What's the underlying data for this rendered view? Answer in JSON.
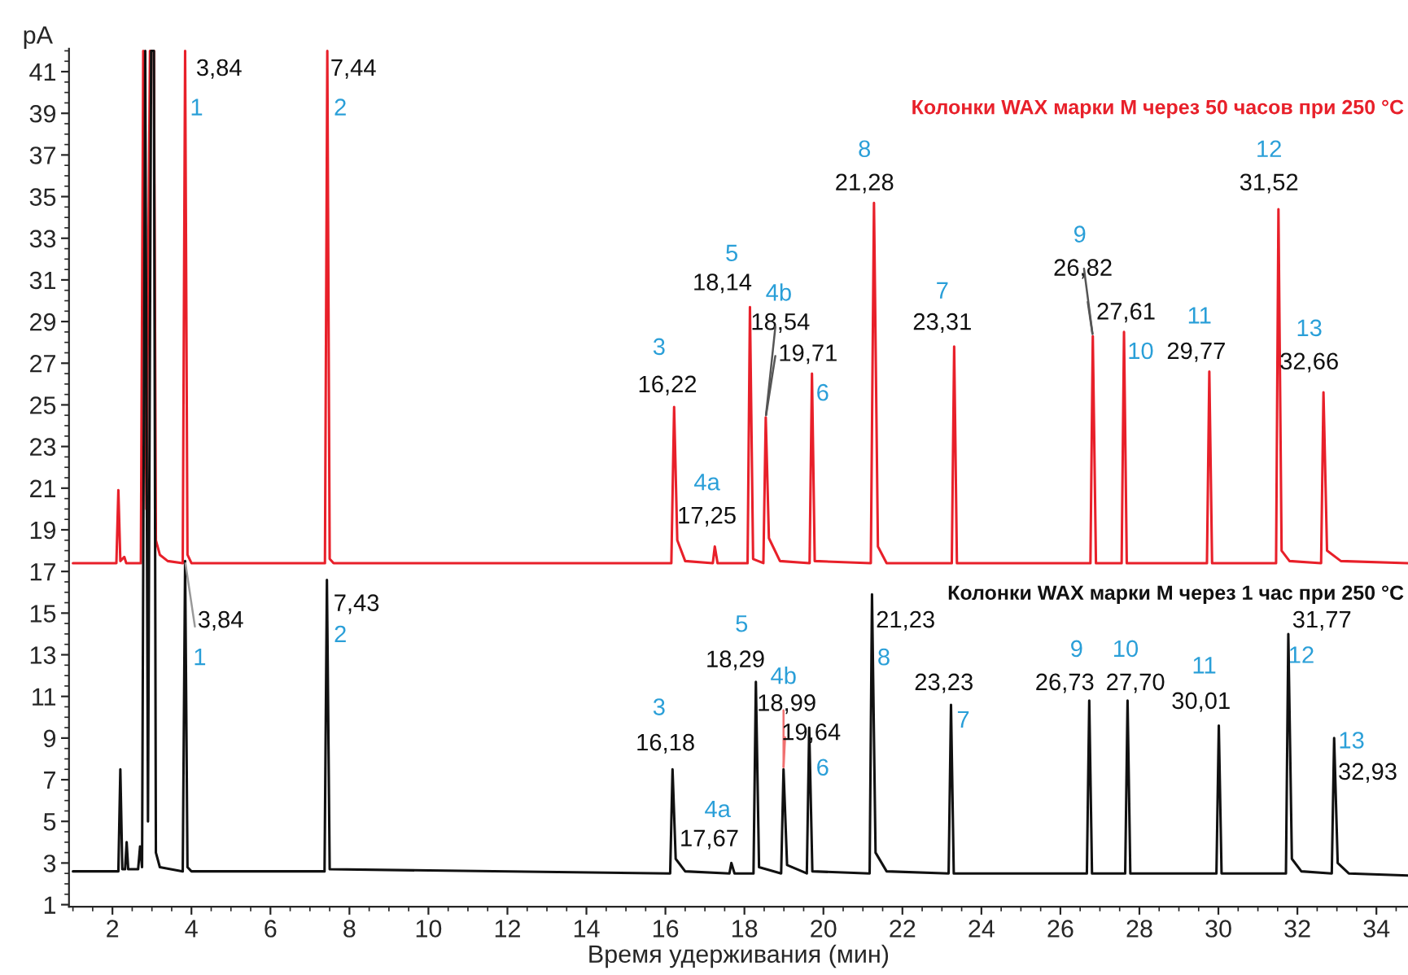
{
  "chart_data": {
    "type": "line",
    "xlabel": "Время удерживания (мин)",
    "ylabel": "pA",
    "xlim": [
      0.9,
      34.8
    ],
    "ylim": [
      0.9,
      42.1
    ],
    "xticks": [
      2,
      4,
      6,
      8,
      10,
      12,
      14,
      16,
      18,
      20,
      22,
      24,
      26,
      28,
      30,
      32,
      34
    ],
    "yticks": [
      1,
      3,
      5,
      7,
      9,
      11,
      13,
      15,
      17,
      19,
      21,
      23,
      25,
      27,
      29,
      31,
      33,
      35,
      37,
      39,
      41
    ],
    "grid": false,
    "marker": "none",
    "line_style": "solid",
    "series": [
      {
        "name": "Колонки WAX марки M через 50 часов при 250 °C",
        "color": "#e8202a",
        "x": [
          1.0,
          2.1,
          2.15,
          2.2,
          2.3,
          2.35,
          2.72,
          2.78,
          2.86,
          2.95,
          3.05,
          3.1,
          3.2,
          3.4,
          3.78,
          3.84,
          3.9,
          4.0,
          7.38,
          7.44,
          7.5,
          7.6,
          16.15,
          16.22,
          16.3,
          16.5,
          17.2,
          17.25,
          17.32,
          18.08,
          18.14,
          18.22,
          18.48,
          18.54,
          18.62,
          18.9,
          19.65,
          19.71,
          19.78,
          21.2,
          21.28,
          21.38,
          21.6,
          23.25,
          23.31,
          23.38,
          26.76,
          26.82,
          26.9,
          27.55,
          27.61,
          27.68,
          29.71,
          29.77,
          29.84,
          31.46,
          31.52,
          31.6,
          31.8,
          32.6,
          32.66,
          32.75,
          33.1,
          34.8
        ],
        "values": [
          17.4,
          17.4,
          20.9,
          17.5,
          17.7,
          17.4,
          17.4,
          42,
          20,
          42,
          42,
          18.5,
          17.8,
          17.5,
          17.4,
          42,
          17.8,
          17.4,
          17.4,
          42,
          17.6,
          17.4,
          17.4,
          24.9,
          18.5,
          17.5,
          17.4,
          18.2,
          17.4,
          17.4,
          29.7,
          17.6,
          17.4,
          24.4,
          18.6,
          17.5,
          17.4,
          26.5,
          17.5,
          17.4,
          34.7,
          18.2,
          17.4,
          17.4,
          27.8,
          17.4,
          17.4,
          28.3,
          17.4,
          17.4,
          28.5,
          17.4,
          17.4,
          26.6,
          17.4,
          17.4,
          34.4,
          18.0,
          17.5,
          17.4,
          25.6,
          18.0,
          17.5,
          17.4
        ]
      },
      {
        "name": "Колонки WAX марки M через 1 час при 250 °C",
        "color": "#111111",
        "x": [
          1.0,
          2.15,
          2.2,
          2.25,
          2.32,
          2.36,
          2.4,
          2.65,
          2.7,
          2.75,
          2.83,
          2.9,
          2.98,
          3.05,
          3.1,
          3.2,
          3.78,
          3.84,
          3.9,
          4.0,
          7.37,
          7.43,
          7.5,
          16.12,
          16.18,
          16.26,
          16.5,
          17.62,
          17.67,
          17.75,
          18.23,
          18.29,
          18.37,
          18.93,
          18.99,
          19.08,
          19.58,
          19.64,
          19.72,
          21.17,
          21.23,
          21.32,
          21.6,
          23.17,
          23.23,
          23.3,
          26.67,
          26.73,
          26.8,
          27.64,
          27.7,
          27.77,
          29.95,
          30.01,
          30.08,
          31.71,
          31.77,
          31.86,
          32.1,
          32.87,
          32.93,
          33.02,
          33.3,
          34.8
        ],
        "values": [
          2.6,
          2.6,
          7.5,
          2.7,
          2.7,
          4.0,
          2.7,
          2.7,
          3.8,
          2.8,
          42,
          5,
          42,
          42,
          3.5,
          2.8,
          2.6,
          17.5,
          2.8,
          2.6,
          2.6,
          16.6,
          2.7,
          2.5,
          7.5,
          3.2,
          2.6,
          2.5,
          3.0,
          2.5,
          2.5,
          11.7,
          2.8,
          2.5,
          7.5,
          2.9,
          2.5,
          9.5,
          2.6,
          2.5,
          15.9,
          3.5,
          2.6,
          2.5,
          10.6,
          2.5,
          2.5,
          10.8,
          2.5,
          2.5,
          10.8,
          2.5,
          2.5,
          9.6,
          2.5,
          2.5,
          14.0,
          3.2,
          2.6,
          2.5,
          9.0,
          3.0,
          2.5,
          2.4
        ]
      }
    ],
    "annotations": [
      {
        "text": "3,84",
        "x": 3.84,
        "y": 42
      },
      {
        "text": "1",
        "x": 3.84,
        "y": 42
      },
      {
        "text": "7,44",
        "x": 7.44,
        "y": 42
      },
      {
        "text": "2",
        "x": 7.44,
        "y": 42
      },
      {
        "text": "16,22",
        "x": 16.22,
        "y": 24.9
      },
      {
        "text": "3",
        "x": 16.22,
        "y": 24.9
      },
      {
        "text": "17,25",
        "x": 17.25,
        "y": 18.2
      },
      {
        "text": "4a",
        "x": 17.25,
        "y": 18.2
      },
      {
        "text": "18,14",
        "x": 18.14,
        "y": 29.7
      },
      {
        "text": "5",
        "x": 18.14,
        "y": 29.7
      },
      {
        "text": "18,54",
        "x": 18.54,
        "y": 24.4
      },
      {
        "text": "4b",
        "x": 18.54,
        "y": 24.4
      },
      {
        "text": "19,71",
        "x": 19.71,
        "y": 26.5
      },
      {
        "text": "6",
        "x": 19.71,
        "y": 26.5
      },
      {
        "text": "21,28",
        "x": 21.28,
        "y": 34.7
      },
      {
        "text": "8",
        "x": 21.28,
        "y": 34.7
      },
      {
        "text": "23,31",
        "x": 23.31,
        "y": 27.8
      },
      {
        "text": "7",
        "x": 23.31,
        "y": 27.8
      },
      {
        "text": "26,82",
        "x": 26.82,
        "y": 28.3
      },
      {
        "text": "9",
        "x": 26.82,
        "y": 28.3
      },
      {
        "text": "27,61",
        "x": 27.61,
        "y": 28.5
      },
      {
        "text": "10",
        "x": 27.61,
        "y": 28.5
      },
      {
        "text": "29,77",
        "x": 29.77,
        "y": 26.6
      },
      {
        "text": "11",
        "x": 29.77,
        "y": 26.6
      },
      {
        "text": "31,52",
        "x": 31.52,
        "y": 34.4
      },
      {
        "text": "12",
        "x": 31.52,
        "y": 34.4
      },
      {
        "text": "32,66",
        "x": 32.66,
        "y": 25.6
      },
      {
        "text": "13",
        "x": 32.66,
        "y": 25.6
      },
      {
        "text": "3,84",
        "x": 3.84,
        "y": 17.5
      },
      {
        "text": "1",
        "x": 3.84,
        "y": 17.5
      },
      {
        "text": "7,43",
        "x": 7.43,
        "y": 16.6
      },
      {
        "text": "2",
        "x": 7.43,
        "y": 16.6
      },
      {
        "text": "16,18",
        "x": 16.18,
        "y": 7.5
      },
      {
        "text": "3",
        "x": 16.18,
        "y": 7.5
      },
      {
        "text": "17,67",
        "x": 17.67,
        "y": 3.0
      },
      {
        "text": "4a",
        "x": 17.67,
        "y": 3.0
      },
      {
        "text": "18,29",
        "x": 18.29,
        "y": 11.7
      },
      {
        "text": "5",
        "x": 18.29,
        "y": 11.7
      },
      {
        "text": "18,99",
        "x": 18.99,
        "y": 7.5
      },
      {
        "text": "4b",
        "x": 18.99,
        "y": 7.5
      },
      {
        "text": "19,64",
        "x": 19.64,
        "y": 9.5
      },
      {
        "text": "6",
        "x": 19.64,
        "y": 9.5
      },
      {
        "text": "21,23",
        "x": 21.23,
        "y": 15.9
      },
      {
        "text": "8",
        "x": 21.23,
        "y": 15.9
      },
      {
        "text": "23,23",
        "x": 23.23,
        "y": 10.6
      },
      {
        "text": "7",
        "x": 23.23,
        "y": 10.6
      },
      {
        "text": "26,73",
        "x": 26.73,
        "y": 10.8
      },
      {
        "text": "9",
        "x": 26.73,
        "y": 10.8
      },
      {
        "text": "27,70",
        "x": 27.7,
        "y": 10.8
      },
      {
        "text": "10",
        "x": 27.7,
        "y": 10.8
      },
      {
        "text": "30,01",
        "x": 30.01,
        "y": 9.6
      },
      {
        "text": "11",
        "x": 30.01,
        "y": 9.6
      },
      {
        "text": "31,77",
        "x": 31.77,
        "y": 14.0
      },
      {
        "text": "12",
        "x": 31.77,
        "y": 14.0
      },
      {
        "text": "32,93",
        "x": 32.93,
        "y": 9.0
      },
      {
        "text": "13",
        "x": 32.93,
        "y": 9.0
      }
    ]
  }
}
